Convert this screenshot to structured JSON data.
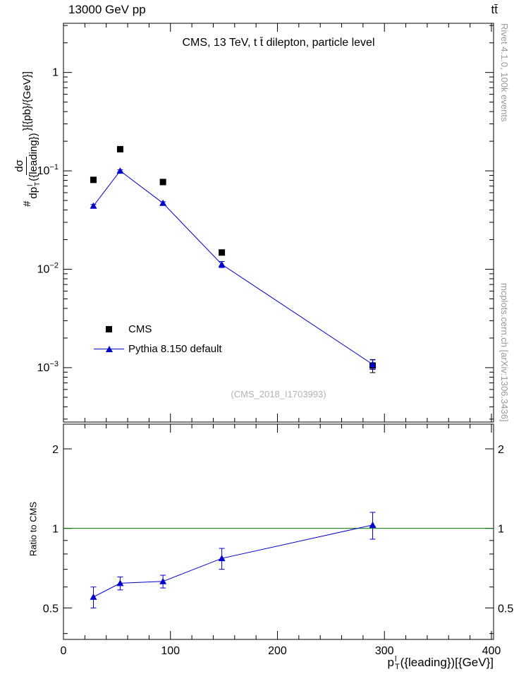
{
  "header": {
    "left": "13000 GeV pp",
    "right": "tt̄"
  },
  "right_margin": {
    "top": "Rivet 4.1.0, 100k events",
    "bottom": "mcplots.cern.ch [arXiv:1306.3436]"
  },
  "main_panel": {
    "title": "CMS, 13 TeV, t t̄ dilepton, particle level",
    "watermark": "(CMS_2018_I1703993)",
    "ylabel_parts": {
      "prefix": "#",
      "num": "dσ",
      "den_pre": "dp",
      "den_sup": "l",
      "den_sub": "T",
      "den_post": "({leading})",
      "suffix": "}[{pb}/{GeV}]"
    }
  },
  "ratio_panel": {
    "ylabel": "Ratio to CMS"
  },
  "xaxis_label": {
    "pre": "p",
    "sup": "l",
    "sub": "T",
    "post": "({leading})[{GeV}]"
  },
  "chart_data": [
    {
      "id": "main",
      "type": "scatter",
      "title": "CMS, 13 TeV, t t̄ dilepton, particle level",
      "xlabel": "p_T^l({leading}) [{GeV}]",
      "ylabel": "# dσ/dp_T^l({leading}) }[{pb}/{GeV}]",
      "yscale": "log",
      "xlim": [
        0,
        402
      ],
      "ylim": [
        0.00028,
        3.16
      ],
      "xticks": [
        0,
        100,
        200,
        300,
        400
      ],
      "xminor": 20,
      "yticks": [
        1,
        0.1,
        0.01,
        0.001
      ],
      "ylabel_style": "exp",
      "xlabels": false,
      "x": [
        28,
        53,
        93,
        148,
        289
      ],
      "series": [
        {
          "name": "CMS",
          "marker": "square",
          "color": "#000000",
          "values": [
            0.081,
            0.166,
            0.077,
            0.0148,
            0.00105
          ],
          "yerr": [
            0.004,
            0.007,
            0.004,
            0.0009,
            0.00016
          ]
        },
        {
          "name": "Pythia 8.150 default",
          "marker": "triangle",
          "color": "#0000cc",
          "line": true,
          "values": [
            0.044,
            0.1,
            0.047,
            0.0112,
            0.00108
          ],
          "yerr": [
            0.0015,
            0.0025,
            0.0015,
            0.0008,
            0.00012
          ]
        }
      ]
    },
    {
      "id": "ratio",
      "type": "scatter",
      "ylabel": "Ratio to CMS",
      "yscale": "log",
      "xlim": [
        0,
        402
      ],
      "ylim": [
        0.38,
        2.48
      ],
      "xticks": [
        0,
        100,
        200,
        300,
        400
      ],
      "xminor": 20,
      "yticks": [
        0.5,
        1,
        2
      ],
      "ylabel_style": "plain",
      "xlabels": true,
      "refline": 1,
      "refline_color": "#007700",
      "x": [
        28,
        53,
        93,
        148,
        289
      ],
      "series": [
        {
          "name": "Pythia 8.150 default / CMS",
          "marker": "triangle",
          "color": "#0000cc",
          "line": true,
          "values": [
            0.55,
            0.62,
            0.63,
            0.77,
            1.03
          ],
          "yerr": [
            0.05,
            0.035,
            0.035,
            0.07,
            0.12
          ]
        }
      ]
    }
  ]
}
